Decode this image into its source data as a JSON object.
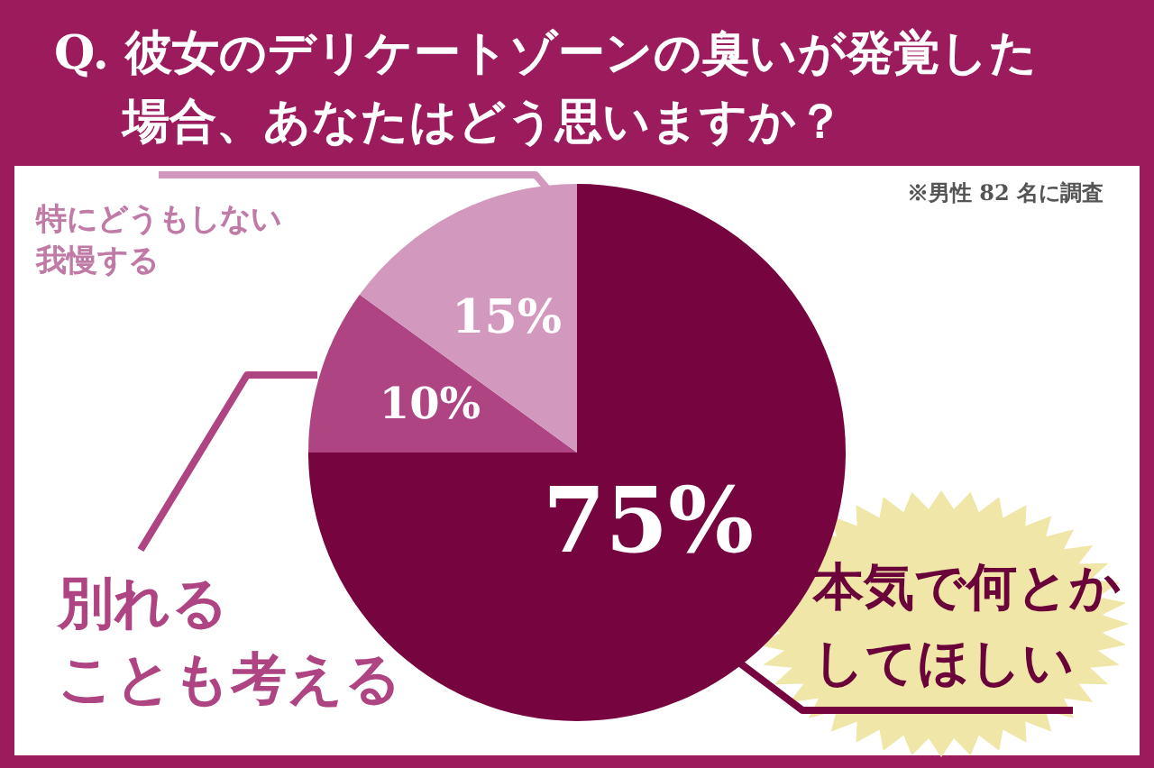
{
  "chart_data": {
    "type": "pie",
    "title": "Q. 彼女のデリケートゾーンの臭いが発覚した場合、あなたはどう思いますか？",
    "categories": [
      "本気で何とかしてほしい",
      "別れることも考える",
      "特にどうもしない我慢する"
    ],
    "values": [
      75,
      10,
      15
    ],
    "colors": [
      "#76043f",
      "#ae4482",
      "#d398bd"
    ],
    "value_labels": [
      "75%",
      "10%",
      "15%"
    ],
    "annotations": [
      "※男性 82 名に調査"
    ]
  }
}
